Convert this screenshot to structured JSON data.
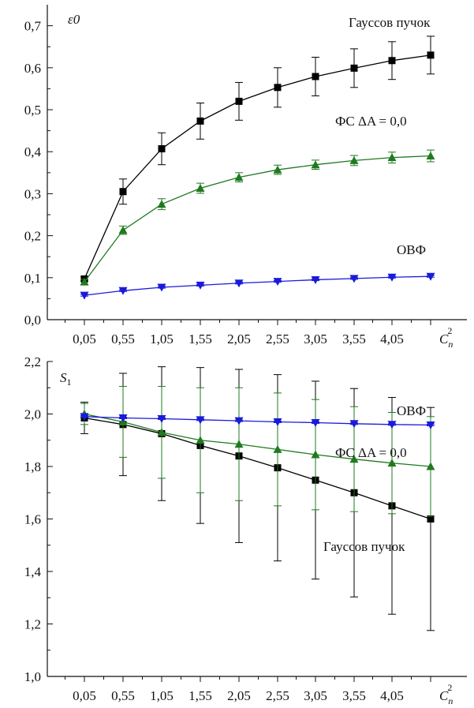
{
  "chart_data": [
    {
      "type": "line",
      "ylabel": "ε0",
      "xlabel": "C_n^2",
      "xlabel_main": "C",
      "xlabel_sub": "n",
      "xlabel_sup": "2",
      "ylim": [
        0.0,
        0.75
      ],
      "y_ticks": [
        "0,0",
        "0,1",
        "0,2",
        "0,3",
        "0,4",
        "0,5",
        "0,6",
        "0,7"
      ],
      "y_tick_values": [
        0.0,
        0.1,
        0.2,
        0.3,
        0.4,
        0.5,
        0.6,
        0.7
      ],
      "x_ticks": [
        "0,05",
        "0,55",
        "1,05",
        "1,55",
        "2,05",
        "2,55",
        "3,05",
        "3,55",
        "4,05"
      ],
      "x": [
        0.05,
        0.55,
        1.05,
        1.55,
        2.05,
        2.55,
        3.05,
        3.55,
        4.05,
        4.55
      ],
      "series": [
        {
          "name": "Гауссов пучок",
          "color": "#000000",
          "marker": "square",
          "values": [
            0.097,
            0.305,
            0.407,
            0.473,
            0.52,
            0.553,
            0.579,
            0.599,
            0.617,
            0.63
          ],
          "errors": [
            0.005,
            0.03,
            0.038,
            0.043,
            0.045,
            0.047,
            0.046,
            0.046,
            0.045,
            0.045
          ]
        },
        {
          "name": "ФС ΔA = 0,0",
          "color": "#1f7a1f",
          "marker": "triangle-up",
          "values": [
            0.09,
            0.213,
            0.275,
            0.313,
            0.339,
            0.357,
            0.369,
            0.379,
            0.386,
            0.39
          ],
          "errors": [
            0.006,
            0.01,
            0.013,
            0.012,
            0.011,
            0.011,
            0.011,
            0.012,
            0.013,
            0.014
          ]
        },
        {
          "name": "ОВФ",
          "color": "#1a1adb",
          "marker": "triangle-down",
          "values": [
            0.058,
            0.069,
            0.077,
            0.082,
            0.087,
            0.091,
            0.095,
            0.098,
            0.101,
            0.103
          ],
          "errors": [
            0.002,
            0.002,
            0.002,
            0.002,
            0.002,
            0.002,
            0.002,
            0.002,
            0.002,
            0.002
          ]
        }
      ]
    },
    {
      "type": "line",
      "ylabel": "S1",
      "ylabel_main": "S",
      "ylabel_sub": "1",
      "xlabel": "C_n^2",
      "xlabel_main": "C",
      "xlabel_sub": "n",
      "xlabel_sup": "2",
      "ylim": [
        1.0,
        2.2
      ],
      "y_ticks": [
        "1,0",
        "1,2",
        "1,4",
        "1,6",
        "1,8",
        "2,0",
        "2,2"
      ],
      "y_tick_values": [
        1.0,
        1.2,
        1.4,
        1.6,
        1.8,
        2.0,
        2.2
      ],
      "x_ticks": [
        "0,05",
        "0,55",
        "1,05",
        "1,55",
        "2,05",
        "2,55",
        "3,05",
        "3,55",
        "4,05"
      ],
      "x": [
        0.05,
        0.55,
        1.05,
        1.55,
        2.05,
        2.55,
        3.05,
        3.55,
        4.05,
        4.55
      ],
      "series": [
        {
          "name": "Гауссов пучок",
          "color": "#000000",
          "marker": "square",
          "values": [
            1.985,
            1.96,
            1.925,
            1.88,
            1.84,
            1.795,
            1.748,
            1.7,
            1.65,
            1.6
          ],
          "errors": [
            0.06,
            0.195,
            0.255,
            0.297,
            0.33,
            0.355,
            0.377,
            0.397,
            0.413,
            0.425
          ]
        },
        {
          "name": "ФС ΔA = 0,0",
          "color": "#1f7a1f",
          "marker": "triangle-up",
          "values": [
            2.0,
            1.97,
            1.93,
            1.9,
            1.885,
            1.865,
            1.845,
            1.828,
            1.813,
            1.8
          ],
          "errors": [
            0.04,
            0.135,
            0.175,
            0.2,
            0.215,
            0.215,
            0.21,
            0.2,
            0.193,
            0.19
          ]
        },
        {
          "name": "ОВФ",
          "color": "#1a1adb",
          "marker": "triangle-down",
          "values": [
            1.99,
            1.985,
            1.982,
            1.978,
            1.974,
            1.97,
            1.967,
            1.963,
            1.96,
            1.958
          ],
          "errors": [
            0.003,
            0.003,
            0.003,
            0.003,
            0.003,
            0.003,
            0.003,
            0.003,
            0.003,
            0.003
          ]
        }
      ]
    }
  ]
}
